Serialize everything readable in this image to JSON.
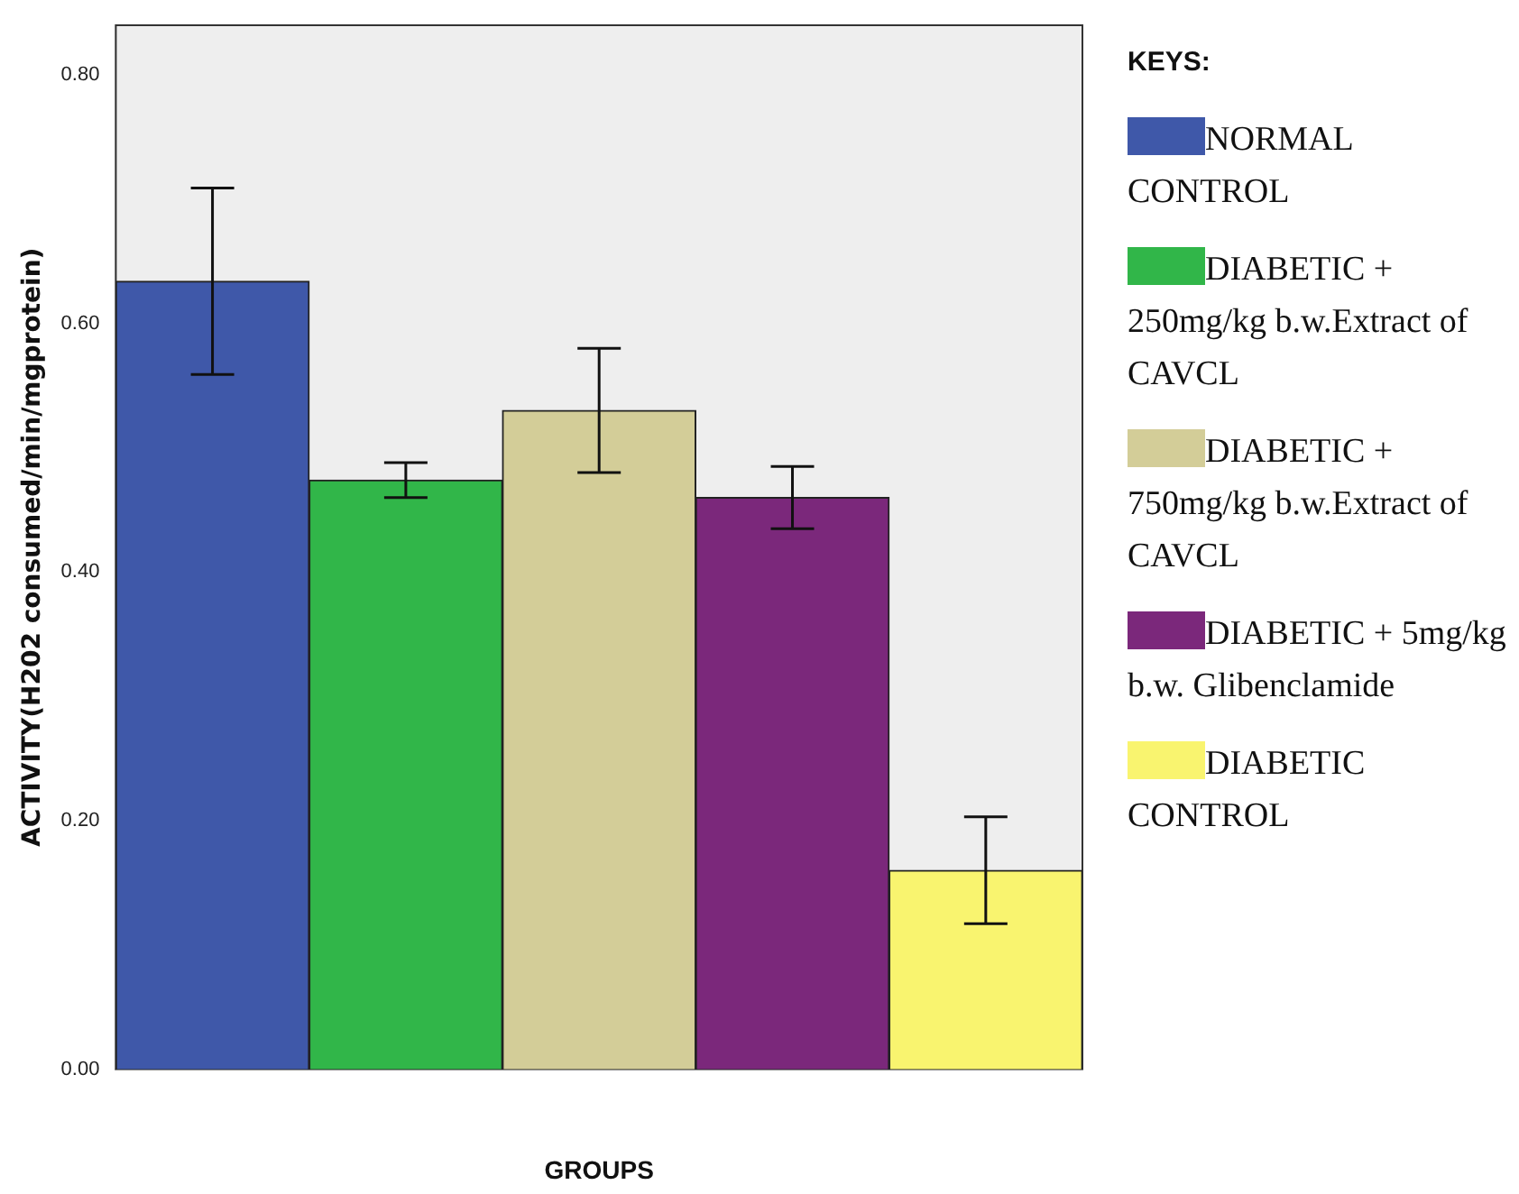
{
  "chart_data": {
    "type": "bar",
    "xlabel": "GROUPS",
    "ylabel": "ACTIVITY(H202 consumed/min/mgprotein)",
    "legend_title": "KEYS:",
    "legend": "right",
    "categories": [
      null,
      null,
      null,
      null,
      null
    ],
    "ylim": [
      0,
      0.84
    ],
    "yticks": [
      {
        "value": 0,
        "label": "0.00"
      },
      {
        "value": 0.2,
        "label": "0.20"
      },
      {
        "value": 0.4,
        "label": "0.40"
      },
      {
        "value": 0.6,
        "label": "0.60"
      },
      {
        "value": 0.8,
        "label": "0.80"
      }
    ],
    "series": [
      {
        "name": "NORMAL CONTROL",
        "color": "#3f58a9",
        "values": [
          0.634,
          null,
          null,
          null,
          null
        ],
        "errors": [
          0.075,
          null,
          null,
          null,
          null
        ]
      },
      {
        "name": "DIABETIC + 250mg/kg b.w.Extract of CAVCL",
        "color": "#31b649",
        "values": [
          null,
          0.474,
          null,
          null,
          null
        ],
        "errors": [
          null,
          0.014,
          null,
          null,
          null
        ]
      },
      {
        "name": "DIABETIC + 750mg/kg b.w.Extract of CAVCL",
        "color": "#d3cd98",
        "values": [
          null,
          null,
          0.53,
          null,
          null
        ],
        "errors": [
          null,
          null,
          0.05,
          null,
          null
        ]
      },
      {
        "name": "DIABETIC + 5mg/kg b.w. Glibenclamide",
        "color": "#7b287b",
        "values": [
          null,
          null,
          null,
          0.46,
          null
        ],
        "errors": [
          null,
          null,
          null,
          0.025,
          null
        ]
      },
      {
        "name": "DIABETIC CONTROL",
        "color": "#f9f46f",
        "values": [
          null,
          null,
          null,
          null,
          0.16
        ],
        "errors": [
          null,
          null,
          null,
          null,
          0.043
        ]
      }
    ]
  }
}
